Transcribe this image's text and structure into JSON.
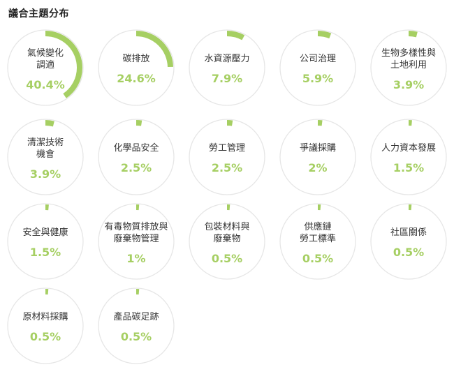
{
  "header": {
    "title": "議合主題分布"
  },
  "colors": {
    "accent": "#a6cf63",
    "track": "#e6e6e6",
    "text": "#333333"
  },
  "chart_data": {
    "type": "pie",
    "title": "議合主題分布",
    "categories": [
      "氣候變化調適",
      "碳排放",
      "水資源壓力",
      "公司治理",
      "生物多樣性與土地利用",
      "清潔技術機會",
      "化學品安全",
      "勞工管理",
      "爭議採購",
      "人力資本發展",
      "安全與健康",
      "有毒物質排放與廢棄物管理",
      "包裝材料與廢棄物",
      "供應鏈勞工標準",
      "社區關係",
      "原材料採購",
      "產品碳足跡"
    ],
    "values": [
      40.4,
      24.6,
      7.9,
      5.9,
      3.9,
      3.9,
      2.5,
      2.5,
      2,
      1.5,
      1.5,
      1,
      0.5,
      0.5,
      0.5,
      0.5,
      0.5
    ],
    "items": [
      {
        "label_lines": [
          "氣候變化",
          "調適"
        ],
        "value_label": "40.4%"
      },
      {
        "label_lines": [
          "碳排放"
        ],
        "value_label": "24.6%"
      },
      {
        "label_lines": [
          "水資源壓力"
        ],
        "value_label": "7.9%"
      },
      {
        "label_lines": [
          "公司治理"
        ],
        "value_label": "5.9%"
      },
      {
        "label_lines": [
          "生物多樣性與",
          "土地利用"
        ],
        "value_label": "3.9%"
      },
      {
        "label_lines": [
          "清潔技術",
          "機會"
        ],
        "value_label": "3.9%"
      },
      {
        "label_lines": [
          "化學品安全"
        ],
        "value_label": "2.5%"
      },
      {
        "label_lines": [
          "勞工管理"
        ],
        "value_label": "2.5%"
      },
      {
        "label_lines": [
          "爭議採購"
        ],
        "value_label": "2%"
      },
      {
        "label_lines": [
          "人力資本發展"
        ],
        "value_label": "1.5%"
      },
      {
        "label_lines": [
          "安全與健康"
        ],
        "value_label": "1.5%"
      },
      {
        "label_lines": [
          "有毒物質排放與",
          "廢棄物管理"
        ],
        "value_label": "1%"
      },
      {
        "label_lines": [
          "包裝材料與",
          "廢棄物"
        ],
        "value_label": "0.5%"
      },
      {
        "label_lines": [
          "供應鏈",
          "勞工標準"
        ],
        "value_label": "0.5%"
      },
      {
        "label_lines": [
          "社區關係"
        ],
        "value_label": "0.5%"
      },
      {
        "label_lines": [
          "原材料採購"
        ],
        "value_label": "0.5%"
      },
      {
        "label_lines": [
          "產品碳足跡"
        ],
        "value_label": "0.5%"
      }
    ]
  }
}
